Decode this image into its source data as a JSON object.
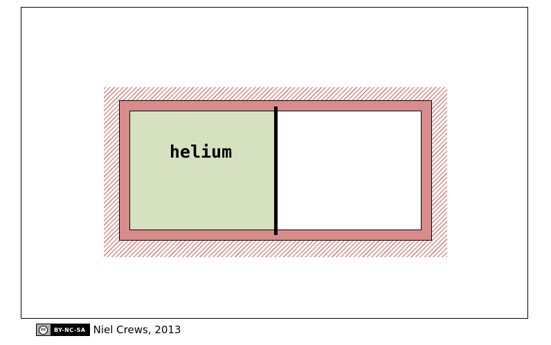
{
  "diagram": {
    "gas_label": "helium",
    "colors": {
      "wall": "#d98c8c",
      "gas": "#d6e2bf",
      "outline": "#000000"
    }
  },
  "footer": {
    "license_mark": "cc",
    "license_terms": "BY-NC-SA",
    "credit": "Niel Crews, 2013"
  }
}
